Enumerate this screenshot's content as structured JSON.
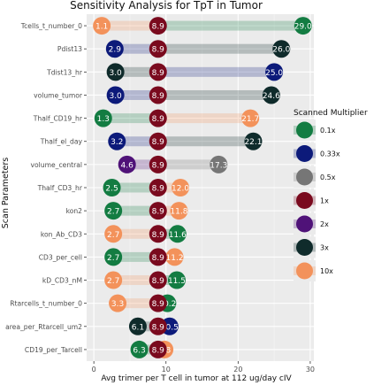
{
  "chart_data": {
    "type": "scatter",
    "title": "Sensitivity Analysis for TpT in Tumor",
    "xlabel": "Avg trimer per T cell in tumor at 112 ug/day cIV",
    "ylabel": "Scan Parameters",
    "xlim": [
      -1,
      30.5
    ],
    "xticks": [
      0,
      10,
      20,
      30
    ],
    "grid": true,
    "legend_position": "right",
    "legend_title": "Scanned Multiplier",
    "baseline": 8.9,
    "multipliers": [
      {
        "name": "0.1x",
        "color": "#137c42"
      },
      {
        "name": "0.33x",
        "color": "#0c1a7a"
      },
      {
        "name": "0.5x",
        "color": "#767676"
      },
      {
        "name": "1x",
        "color": "#7a0a1e"
      },
      {
        "name": "2x",
        "color": "#4f1278"
      },
      {
        "name": "3x",
        "color": "#0f2b2b"
      },
      {
        "name": "10x",
        "color": "#f3925b"
      }
    ],
    "parameters": [
      {
        "name": "Tcells_t_number_0",
        "low": 1.1,
        "low_mult": "10x",
        "high": 29.0,
        "high_mult": "0.1x"
      },
      {
        "name": "Pdist13",
        "low": 2.9,
        "low_mult": "0.33x",
        "high": 26.0,
        "high_mult": "3x"
      },
      {
        "name": "Tdist13_hr",
        "low": 3.0,
        "low_mult": "3x",
        "high": 25.0,
        "high_mult": "0.33x"
      },
      {
        "name": "volume_tumor",
        "low": 3.0,
        "low_mult": "0.33x",
        "high": 24.6,
        "high_mult": "3x"
      },
      {
        "name": "Thalf_CD19_hr",
        "low": 1.3,
        "low_mult": "0.1x",
        "high": 21.7,
        "high_mult": "10x"
      },
      {
        "name": "Thalf_el_day",
        "low": 3.2,
        "low_mult": "0.33x",
        "high": 22.1,
        "high_mult": "3x"
      },
      {
        "name": "volume_central",
        "low": 4.6,
        "low_mult": "2x",
        "high": 17.3,
        "high_mult": "0.5x"
      },
      {
        "name": "Thalf_CD3_hr",
        "low": 2.5,
        "low_mult": "0.1x",
        "high": 12.0,
        "high_mult": "10x"
      },
      {
        "name": "kon2",
        "low": 2.7,
        "low_mult": "0.1x",
        "high": 11.8,
        "high_mult": "10x"
      },
      {
        "name": "kon_Ab_CD3",
        "low": 2.7,
        "low_mult": "10x",
        "high": 11.6,
        "high_mult": "0.1x"
      },
      {
        "name": "CD3_per_cell",
        "low": 2.7,
        "low_mult": "0.1x",
        "high": 11.2,
        "high_mult": "10x"
      },
      {
        "name": "kD_CD3_nM",
        "low": 2.7,
        "low_mult": "10x",
        "high": 11.5,
        "high_mult": "0.1x"
      },
      {
        "name": "Rtarcells_t_number_0",
        "low": 3.3,
        "low_mult": "10x",
        "high": 10.2,
        "high_mult": "0.1x"
      },
      {
        "name": "area_per_Rtarcell_um2",
        "low": 6.1,
        "low_mult": "3x",
        "high": 10.5,
        "high_mult": "0.33x"
      },
      {
        "name": "CD19_per_Tarcell",
        "low": 6.3,
        "low_mult": "0.1x",
        "high": 9.8,
        "high_mult": "10x"
      }
    ]
  }
}
